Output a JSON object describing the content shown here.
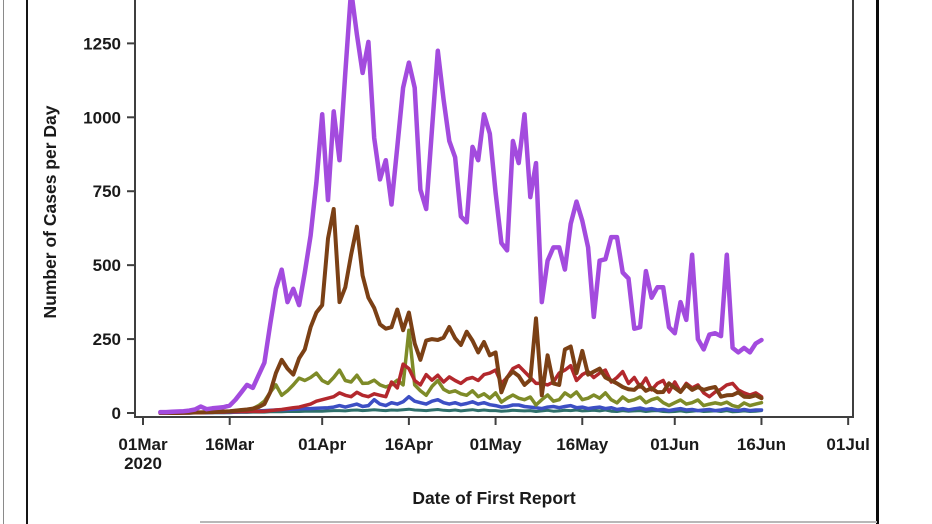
{
  "page": {
    "background": "#ffffff",
    "decorations": {
      "left_edge_line_color": "#8a8a8a",
      "figure_border_color": "#151515",
      "legend_top_line_color": "#b8b8b8"
    }
  },
  "chart_data": {
    "type": "line",
    "title": "",
    "xlabel": "Date of First Report",
    "ylabel": "Number of Cases per Day",
    "x_axis_year_sub_label": "2020",
    "grid": false,
    "legend_visible": false,
    "ylim": [
      0,
      1410
    ],
    "y_ticks": [
      0,
      250,
      500,
      750,
      1000,
      1250
    ],
    "x_ticks": [
      {
        "day": 0,
        "label": "01Mar",
        "sub": "2020"
      },
      {
        "day": 15,
        "label": "16Mar"
      },
      {
        "day": 31,
        "label": "01Apr"
      },
      {
        "day": 46,
        "label": "16Apr"
      },
      {
        "day": 61,
        "label": "01May"
      },
      {
        "day": 76,
        "label": "16May"
      },
      {
        "day": 92,
        "label": "01Jun"
      },
      {
        "day": 107,
        "label": "16Jun"
      },
      {
        "day": 122,
        "label": "01Jul"
      }
    ],
    "x_start_day": 3,
    "x_start_date": "2020-03-04",
    "x_step_days": 1,
    "frame_color": "#3f3f3f",
    "series": [
      {
        "name": "teal",
        "color": "#2e6f6a",
        "width": 3,
        "values": [
          0,
          0,
          0,
          0,
          0,
          0,
          0,
          0,
          1,
          1,
          1,
          1,
          1,
          2,
          2,
          2,
          3,
          3,
          3,
          4,
          4,
          4,
          5,
          5,
          5,
          6,
          6,
          6,
          6,
          7,
          8,
          8,
          7,
          9,
          10,
          8,
          9,
          11,
          9,
          8,
          10,
          9,
          11,
          13,
          10,
          9,
          8,
          10,
          12,
          9,
          8,
          10,
          7,
          9,
          11,
          8,
          10,
          8,
          8,
          6,
          7,
          9,
          8,
          7,
          8,
          5,
          7,
          9,
          6,
          7,
          9,
          8,
          10,
          7,
          8,
          9,
          7,
          10,
          6,
          5,
          8,
          6,
          7,
          8,
          5,
          7,
          8,
          5,
          4,
          5,
          7,
          4,
          6,
          8,
          5,
          6,
          7,
          5,
          8,
          4,
          5,
          7,
          5,
          6,
          8
        ]
      },
      {
        "name": "blue",
        "color": "#3d4fc4",
        "width": 3.5,
        "values": [
          0,
          0,
          0,
          0,
          0,
          0,
          1,
          1,
          1,
          2,
          2,
          2,
          3,
          3,
          4,
          5,
          6,
          7,
          8,
          9,
          10,
          11,
          12,
          13,
          14,
          15,
          15,
          16,
          17,
          18,
          20,
          25,
          20,
          25,
          30,
          22,
          25,
          45,
          30,
          25,
          35,
          30,
          38,
          55,
          40,
          35,
          30,
          40,
          45,
          35,
          30,
          35,
          28,
          32,
          38,
          30,
          35,
          28,
          25,
          20,
          22,
          27,
          27,
          22,
          20,
          18,
          15,
          20,
          22,
          18,
          22,
          25,
          18,
          20,
          15,
          18,
          20,
          15,
          18,
          12,
          15,
          10,
          14,
          17,
          12,
          15,
          10,
          12,
          8,
          12,
          15,
          10,
          12,
          8,
          10,
          12,
          8,
          10,
          14,
          10,
          8,
          12,
          8,
          10,
          10
        ]
      },
      {
        "name": "olive",
        "color": "#7e8b28",
        "width": 3.5,
        "values": [
          0,
          0,
          0,
          0,
          1,
          1,
          2,
          2,
          3,
          3,
          4,
          5,
          6,
          8,
          10,
          12,
          15,
          25,
          40,
          70,
          95,
          60,
          75,
          95,
          118,
          110,
          120,
          135,
          110,
          100,
          120,
          145,
          110,
          105,
          128,
          100,
          101,
          111,
          95,
          88,
          95,
          111,
          95,
          280,
          95,
          75,
          60,
          90,
          110,
          80,
          70,
          75,
          65,
          60,
          75,
          55,
          65,
          50,
          68,
          37,
          50,
          61,
          50,
          45,
          54,
          27,
          45,
          61,
          40,
          45,
          68,
          55,
          71,
          45,
          50,
          61,
          50,
          68,
          45,
          34,
          54,
          40,
          45,
          54,
          35,
          45,
          51,
          35,
          25,
          35,
          44,
          30,
          35,
          44,
          25,
          30,
          34,
          30,
          37,
          25,
          20,
          34,
          25,
          30,
          35
        ]
      },
      {
        "name": "red",
        "color": "#b3282d",
        "width": 3.5,
        "values": [
          0,
          0,
          0,
          0,
          0,
          1,
          1,
          1,
          2,
          2,
          3,
          3,
          4,
          4,
          5,
          5,
          6,
          5,
          6,
          8,
          10,
          12,
          15,
          18,
          20,
          25,
          30,
          40,
          45,
          50,
          55,
          68,
          60,
          55,
          70,
          60,
          55,
          65,
          60,
          55,
          105,
          85,
          165,
          150,
          110,
          95,
          130,
          111,
          128,
          105,
          122,
          110,
          100,
          115,
          120,
          110,
          130,
          135,
          145,
          100,
          120,
          150,
          160,
          140,
          120,
          100,
          100,
          95,
          105,
          135,
          145,
          160,
          110,
          130,
          140,
          120,
          135,
          145,
          105,
          120,
          140,
          100,
          120,
          88,
          118,
          78,
          100,
          110,
          71,
          105,
          71,
          100,
          85,
          95,
          68,
          55,
          71,
          80,
          95,
          100,
          78,
          68,
          61,
          68,
          55
        ]
      },
      {
        "name": "brown",
        "color": "#7b4015",
        "width": 4,
        "values": [
          0,
          0,
          0,
          0,
          1,
          1,
          2,
          2,
          3,
          3,
          4,
          5,
          6,
          8,
          10,
          12,
          15,
          20,
          30,
          70,
          135,
          180,
          150,
          130,
          185,
          215,
          290,
          340,
          365,
          590,
          690,
          375,
          425,
          535,
          630,
          465,
          390,
          355,
          300,
          285,
          290,
          350,
          280,
          340,
          235,
          180,
          245,
          250,
          247,
          255,
          291,
          253,
          230,
          275,
          245,
          205,
          240,
          195,
          205,
          70,
          120,
          140,
          125,
          95,
          112,
          320,
          60,
          195,
          100,
          95,
          215,
          225,
          135,
          210,
          130,
          140,
          150,
          120,
          110,
          100,
          88,
          80,
          78,
          95,
          75,
          84,
          70,
          71,
          100,
          85,
          71,
          95,
          78,
          88,
          78,
          84,
          88,
          55,
          60,
          61,
          70,
          55,
          54,
          60,
          50
        ]
      },
      {
        "name": "purple",
        "color": "#a34bde",
        "width": 4.5,
        "values": [
          3,
          3,
          4,
          5,
          6,
          8,
          12,
          22,
          13,
          16,
          18,
          20,
          25,
          45,
          70,
          95,
          85,
          128,
          170,
          300,
          420,
          485,
          375,
          420,
          365,
          475,
          600,
          780,
          1010,
          720,
          1020,
          855,
          1150,
          1430,
          1280,
          1150,
          1255,
          930,
          790,
          855,
          705,
          900,
          1100,
          1185,
          1100,
          755,
          690,
          960,
          1225,
          1060,
          920,
          865,
          665,
          645,
          900,
          855,
          1010,
          945,
          745,
          575,
          550,
          920,
          845,
          1010,
          730,
          845,
          375,
          515,
          560,
          560,
          485,
          640,
          715,
          650,
          560,
          325,
          515,
          520,
          595,
          595,
          475,
          455,
          285,
          290,
          480,
          390,
          425,
          425,
          290,
          270,
          375,
          315,
          535,
          250,
          215,
          265,
          270,
          260,
          535,
          220,
          205,
          220,
          205,
          235,
          247
        ]
      }
    ]
  }
}
